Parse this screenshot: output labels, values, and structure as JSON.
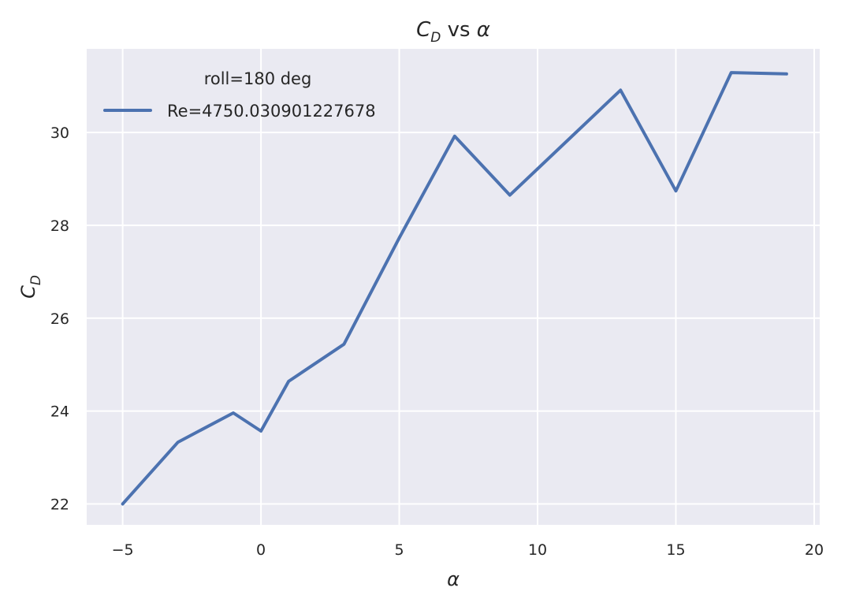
{
  "chart_data": {
    "type": "line",
    "title": {
      "main": "C",
      "sub": "D",
      "rest": " vs ",
      "symbol": "α"
    },
    "xlabel": "α",
    "ylabel": {
      "main": "C",
      "sub": "D"
    },
    "xlim": [
      -6.3,
      20.2
    ],
    "ylim": [
      21.55,
      31.8
    ],
    "xticks": [
      -5,
      0,
      5,
      10,
      15,
      20
    ],
    "xtick_labels": [
      "−5",
      "0",
      "5",
      "10",
      "15",
      "20"
    ],
    "yticks": [
      22,
      24,
      26,
      28,
      30
    ],
    "ytick_labels": [
      "22",
      "24",
      "26",
      "28",
      "30"
    ],
    "grid": true,
    "legend": {
      "title": "roll=180 deg",
      "position": "top-left"
    },
    "series": [
      {
        "name": "Re=4750.030901227678",
        "color": "#4c72b0",
        "x": [
          -5,
          -3,
          -1,
          0,
          1,
          3,
          5,
          7,
          9,
          11,
          13,
          15,
          17,
          19
        ],
        "y": [
          22.0,
          23.33,
          23.96,
          23.57,
          24.64,
          25.44,
          27.73,
          29.92,
          28.65,
          29.78,
          30.91,
          28.74,
          31.29,
          31.26
        ]
      }
    ]
  }
}
